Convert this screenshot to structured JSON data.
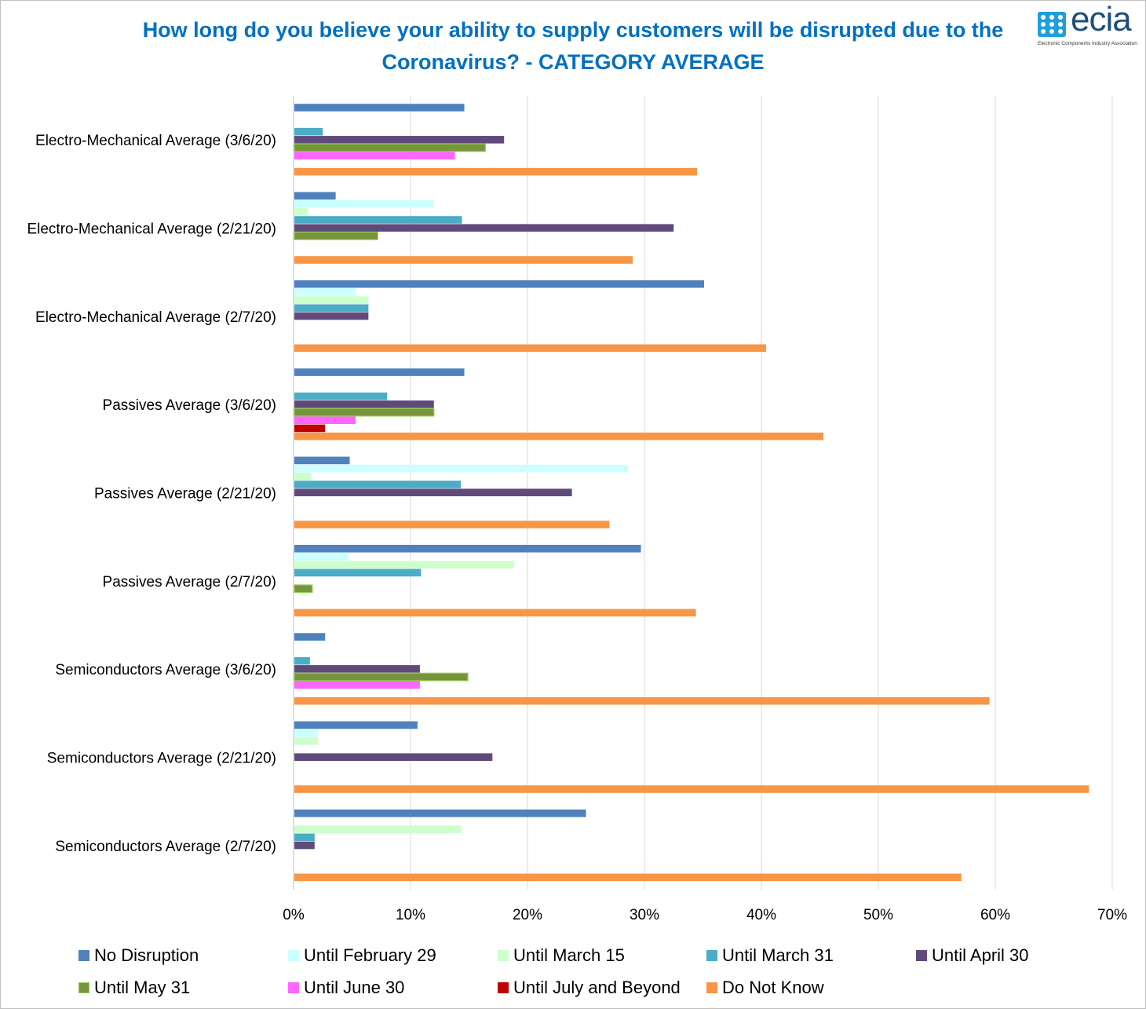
{
  "title": "How long do you believe your ability to supply customers will be disrupted due to the Coronavirus? - CATEGORY  AVERAGE",
  "logo": {
    "word": "ecia",
    "tagline": "Electronic Components Industry Association"
  },
  "chart_data": {
    "type": "bar",
    "orientation": "horizontal",
    "xlim": [
      0,
      70
    ],
    "x_ticks": [
      "0%",
      "10%",
      "20%",
      "30%",
      "40%",
      "50%",
      "60%",
      "70%"
    ],
    "grid": "vertical gridlines on",
    "legend_position": "bottom",
    "categories": [
      "Electro-Mechanical Average (3/6/20)",
      "Electro-Mechanical Average (2/21/20)",
      "Electro-Mechanical Average (2/7/20)",
      "Passives Average (3/6/20)",
      "Passives Average (2/21/20)",
      "Passives Average (2/7/20)",
      "Semiconductors Average (3/6/20)",
      "Semiconductors Average (2/21/20)",
      "Semiconductors Average (2/7/20)"
    ],
    "series": [
      {
        "name": "No Disruption",
        "color": "#4f81bd",
        "values": [
          14.6,
          3.6,
          35.1,
          14.6,
          4.8,
          29.7,
          2.7,
          10.6,
          25.0
        ]
      },
      {
        "name": "Until February 29",
        "color": "#ccffff",
        "values": [
          0,
          12.0,
          5.3,
          0,
          28.6,
          4.7,
          0,
          2.1,
          0
        ]
      },
      {
        "name": "Until March 15",
        "color": "#ccffcc",
        "values": [
          0,
          1.2,
          6.4,
          0,
          1.5,
          18.8,
          0,
          2.1,
          14.3
        ]
      },
      {
        "name": "Until March 31",
        "color": "#4bacc6",
        "values": [
          2.5,
          14.4,
          6.4,
          8.0,
          14.3,
          10.9,
          1.4,
          0,
          1.8
        ]
      },
      {
        "name": "Until April 30",
        "color": "#604a7b",
        "values": [
          18.0,
          32.5,
          6.4,
          12.0,
          23.8,
          0,
          10.8,
          17.0,
          1.8
        ]
      },
      {
        "name": "Until May 31",
        "color": "#77933c",
        "values": [
          16.4,
          7.2,
          0,
          12.0,
          0,
          1.6,
          14.9,
          0,
          0
        ]
      },
      {
        "name": "Until June 30",
        "color": "#ff66ff",
        "values": [
          13.8,
          0,
          0,
          5.3,
          0,
          0,
          10.8,
          0,
          0
        ]
      },
      {
        "name": "Until July and Beyond",
        "color": "#c00000",
        "values": [
          0,
          0,
          0,
          2.7,
          0,
          0,
          0,
          0,
          0
        ]
      },
      {
        "name": "Do Not Know",
        "color": "#f79646",
        "values": [
          34.5,
          29.0,
          40.4,
          45.3,
          27.0,
          34.4,
          59.5,
          68.0,
          57.1
        ]
      }
    ]
  }
}
